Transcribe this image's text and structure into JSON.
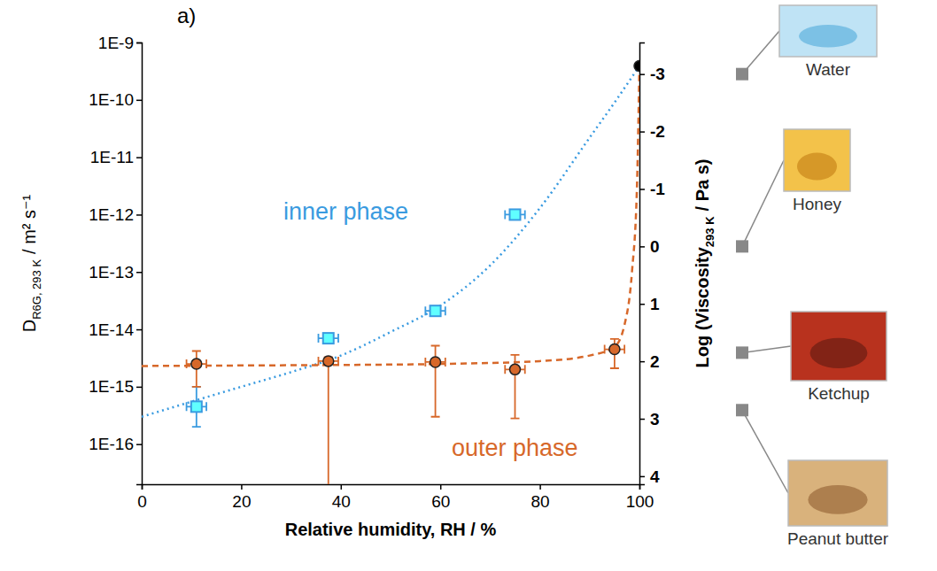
{
  "chart_data": {
    "type": "scatter",
    "panel_label": "a)",
    "x_label": "Relative humidity, RH / %",
    "y_label": "D",
    "y_label_subscript": "R6G, 293 K",
    "y_label_unit": "/ m² s⁻¹",
    "y2_label": "Log (Viscosity",
    "y2_label_subscript": "293 K",
    "y2_label_unit": "/ Pa s)",
    "log": "y",
    "xlim": [
      0,
      100
    ],
    "xticks": [
      0,
      20,
      40,
      60,
      80,
      100
    ],
    "ylim": [
      2e-17,
      1e-09
    ],
    "yticks": [
      {
        "value": 1e-16,
        "label": "1E-16"
      },
      {
        "value": 1e-15,
        "label": "1E-15"
      },
      {
        "value": 1e-14,
        "label": "1E-14"
      },
      {
        "value": 1e-13,
        "label": "1E-13"
      },
      {
        "value": 1e-12,
        "label": "1E-12"
      },
      {
        "value": 1e-11,
        "label": "1E-11"
      },
      {
        "value": 1e-10,
        "label": "1E-10"
      },
      {
        "value": 1e-09,
        "label": "1E-9"
      }
    ],
    "y2lim": [
      4.14,
      -3.55
    ],
    "y2ticks": [
      -3,
      -2,
      -1,
      0,
      1,
      2,
      3,
      4
    ],
    "references": [
      {
        "label": "Water",
        "y2": -3
      },
      {
        "label": "Honey",
        "y2": 0
      },
      {
        "label": "Ketchup",
        "y2": 1.85
      },
      {
        "label": "Peanut butter",
        "y2": 2.85
      }
    ],
    "series": [
      {
        "name": "inner phase",
        "type": "scatter",
        "marker": "square",
        "color": "#3a9be0",
        "x": [
          11,
          37.5,
          59,
          75
        ],
        "values": [
          4.5e-16,
          7e-15,
          2.1e-14,
          1e-12
        ],
        "x_err": [
          2,
          2,
          2,
          2
        ],
        "y_lower": [
          2e-16,
          5.8e-15,
          1.85e-14,
          8.5e-13
        ],
        "y_upper": [
          1e-15,
          8.2e-15,
          2.4e-14,
          1.15e-12
        ]
      },
      {
        "name": "outer phase",
        "type": "scatter",
        "marker": "circle",
        "color": "#d7682a",
        "x": [
          11,
          37.5,
          59,
          75,
          95
        ],
        "values": [
          2.5e-15,
          2.8e-15,
          2.7e-15,
          2e-15,
          4.5e-15
        ],
        "x_err": [
          2,
          2,
          2,
          2,
          2
        ],
        "y_lower": [
          1e-15,
          1e-17,
          3e-16,
          2.8e-16,
          2.1e-15
        ],
        "y_upper": [
          4.2e-15,
          3.3e-15,
          5.2e-15,
          3.6e-15,
          6.8e-15
        ]
      },
      {
        "type": "scatter",
        "marker": "circle",
        "color": "#000000",
        "x": [
          100
        ],
        "values": [
          3.9e-10
        ]
      },
      {
        "type": "line",
        "line_style": "dotted",
        "color": "#3a9be0",
        "x": [
          0,
          10,
          20,
          30,
          40,
          50,
          60,
          70,
          80,
          90,
          95,
          100
        ],
        "values": [
          3e-16,
          5.5e-16,
          1e-15,
          1.8e-15,
          3.5e-15,
          9e-15,
          2.6e-14,
          1.3e-13,
          1.3e-12,
          2.2e-11,
          9e-11,
          3.9e-10
        ]
      },
      {
        "type": "line",
        "line_style": "dashed",
        "color": "#d7682a",
        "x": [
          0,
          20,
          40,
          60,
          80,
          90,
          95,
          97,
          98.5,
          99.5,
          100
        ],
        "values": [
          2.3e-15,
          2.35e-15,
          2.4e-15,
          2.5e-15,
          2.8e-15,
          3.5e-15,
          5e-15,
          1.2e-14,
          1e-13,
          3e-12,
          3.9e-10
        ]
      }
    ]
  }
}
